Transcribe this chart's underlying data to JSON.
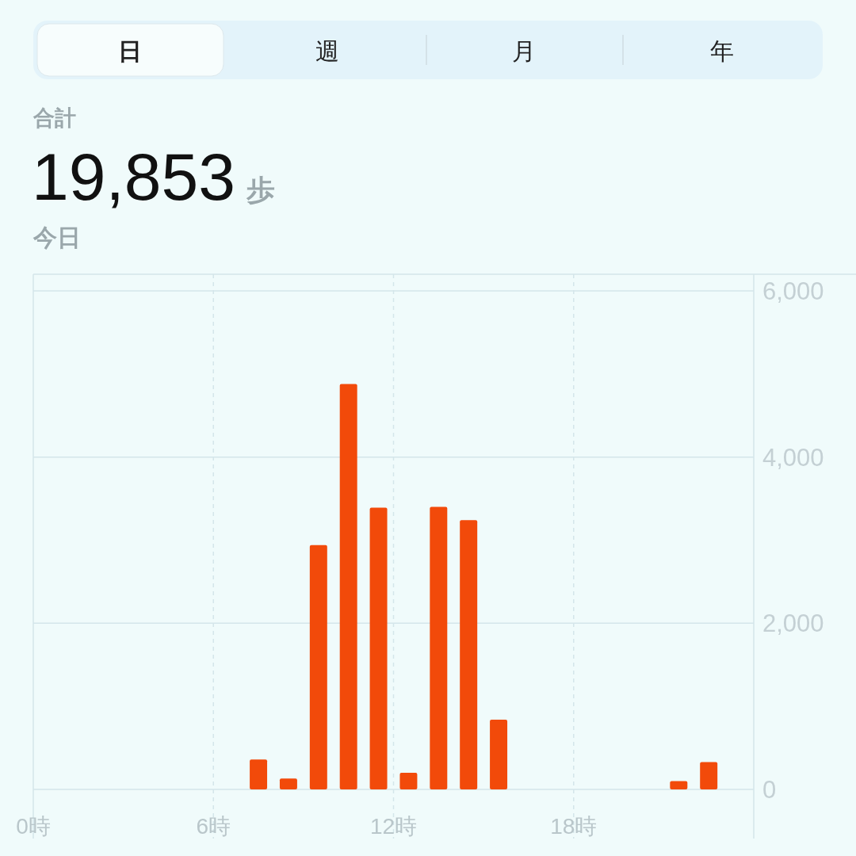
{
  "chart_data": {
    "type": "bar",
    "title": "19,853 歩",
    "subtitle": "今日",
    "annotations": [
      "日",
      "週",
      "月",
      "年",
      "合計"
    ],
    "x": [
      7.5,
      8.5,
      9.5,
      10.5,
      11.5,
      12.5,
      13.5,
      14.5,
      15.5,
      21.5,
      22.5
    ],
    "values": [
      360,
      130,
      2940,
      4880,
      3390,
      200,
      3400,
      3240,
      840,
      100,
      330
    ],
    "color": "#f24a0a",
    "xlim": [
      0,
      24
    ],
    "xticks": [
      {
        "value": 0,
        "label": "0時"
      },
      {
        "value": 6,
        "label": "6時"
      },
      {
        "value": 12,
        "label": "12時"
      },
      {
        "value": 18,
        "label": "18時"
      }
    ],
    "ylim": [
      0,
      6000
    ],
    "yticks": [
      {
        "value": 0,
        "label": "0"
      },
      {
        "value": 2000,
        "label": "2,000"
      },
      {
        "value": 4000,
        "label": "4,000"
      },
      {
        "value": 6000,
        "label": "6,000"
      }
    ],
    "grid": true
  }
}
